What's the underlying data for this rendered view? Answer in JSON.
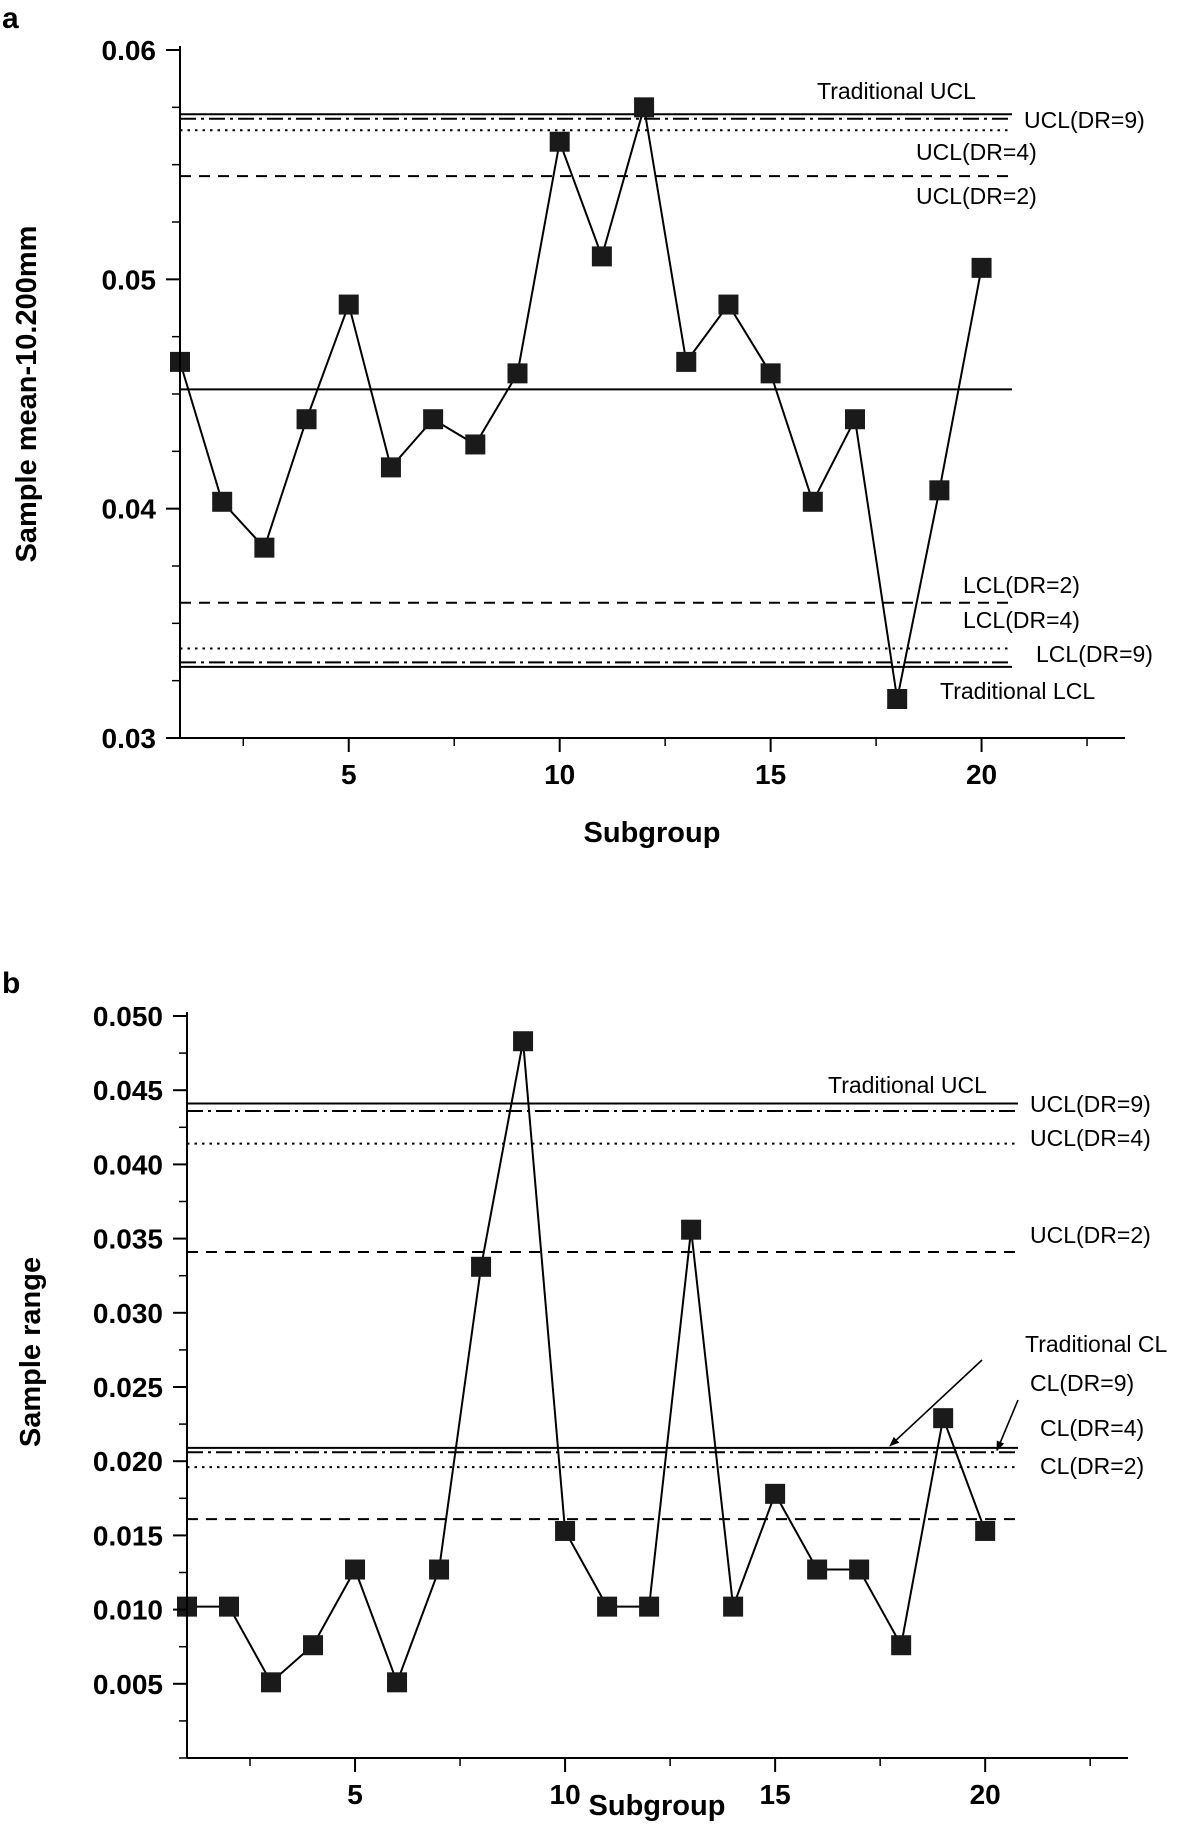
{
  "chart_data": [
    {
      "type": "line",
      "panel": "a",
      "xlabel": "Subgroup",
      "ylabel": "Sample mean-10.200mm",
      "xlim": [
        1,
        23.4
      ],
      "ylim": [
        0.03,
        0.06
      ],
      "x_ticks": [
        5,
        10,
        15,
        20
      ],
      "x_tick_labels": [
        "5",
        "10",
        "15",
        "20"
      ],
      "y_ticks": [
        0.03,
        0.04,
        0.05,
        0.06
      ],
      "y_tick_labels": [
        "0.03",
        "0.04",
        "0.05",
        "0.06"
      ],
      "y_minor_step": 0.0025,
      "x": [
        1,
        2,
        3,
        4,
        5,
        6,
        7,
        8,
        9,
        10,
        11,
        12,
        13,
        14,
        15,
        16,
        17,
        18,
        19,
        20
      ],
      "values": [
        0.0464,
        0.0403,
        0.0383,
        0.0439,
        0.0489,
        0.0418,
        0.0439,
        0.0428,
        0.0459,
        0.056,
        0.051,
        0.0575,
        0.0464,
        0.0489,
        0.0459,
        0.0403,
        0.0439,
        0.0317,
        0.0408,
        0.0505
      ],
      "center_line": 0.0452,
      "control_lines": [
        {
          "name": "Traditional UCL",
          "value": 0.0572,
          "style": "solid"
        },
        {
          "name": "UCL(DR=9)",
          "value": 0.057,
          "style": "dashdot"
        },
        {
          "name": "UCL(DR=4)",
          "value": 0.0565,
          "style": "dotted"
        },
        {
          "name": "UCL(DR=2)",
          "value": 0.0545,
          "style": "dashed"
        },
        {
          "name": "LCL(DR=2)",
          "value": 0.0359,
          "style": "dashed"
        },
        {
          "name": "LCL(DR=4)",
          "value": 0.0339,
          "style": "dotted"
        },
        {
          "name": "LCL(DR=9)",
          "value": 0.0333,
          "style": "dashdot"
        },
        {
          "name": "Traditional LCL",
          "value": 0.0331,
          "style": "solid"
        }
      ]
    },
    {
      "type": "line",
      "panel": "b",
      "xlabel": "Subgroup",
      "ylabel": "Sample range",
      "xlim": [
        1,
        23.4
      ],
      "ylim": [
        0.0,
        0.05
      ],
      "x_ticks": [
        5,
        10,
        15,
        20
      ],
      "x_tick_labels": [
        "5",
        "10",
        "15",
        "20"
      ],
      "y_ticks": [
        0.005,
        0.01,
        0.015,
        0.02,
        0.025,
        0.03,
        0.035,
        0.04,
        0.045,
        0.05
      ],
      "y_tick_labels": [
        "0.005",
        "0.010",
        "0.015",
        "0.020",
        "0.025",
        "0.030",
        "0.035",
        "0.040",
        "0.045",
        "0.050"
      ],
      "y_minor_step": 0.0025,
      "x": [
        1,
        2,
        3,
        4,
        5,
        6,
        7,
        8,
        9,
        10,
        11,
        12,
        13,
        14,
        15,
        16,
        17,
        18,
        19,
        20
      ],
      "values": [
        0.0102,
        0.0102,
        0.0051,
        0.0076,
        0.0127,
        0.0051,
        0.0127,
        0.0331,
        0.0483,
        0.0153,
        0.0102,
        0.0102,
        0.0356,
        0.0102,
        0.0178,
        0.0127,
        0.0127,
        0.0076,
        0.0229,
        0.0153
      ],
      "control_lines": [
        {
          "name": "Traditional UCL",
          "value": 0.0441,
          "style": "solid"
        },
        {
          "name": "UCL(DR=9)",
          "value": 0.0436,
          "style": "dashdot"
        },
        {
          "name": "UCL(DR=4)",
          "value": 0.0414,
          "style": "dotted"
        },
        {
          "name": "UCL(DR=2)",
          "value": 0.0341,
          "style": "dashed"
        },
        {
          "name": "Traditional CL",
          "value": 0.0209,
          "style": "solid"
        },
        {
          "name": "CL(DR=9)",
          "value": 0.0206,
          "style": "dashdot"
        },
        {
          "name": "CL(DR=4)",
          "value": 0.0196,
          "style": "dotted"
        },
        {
          "name": "CL(DR=2)",
          "value": 0.0161,
          "style": "dashed"
        }
      ]
    }
  ]
}
